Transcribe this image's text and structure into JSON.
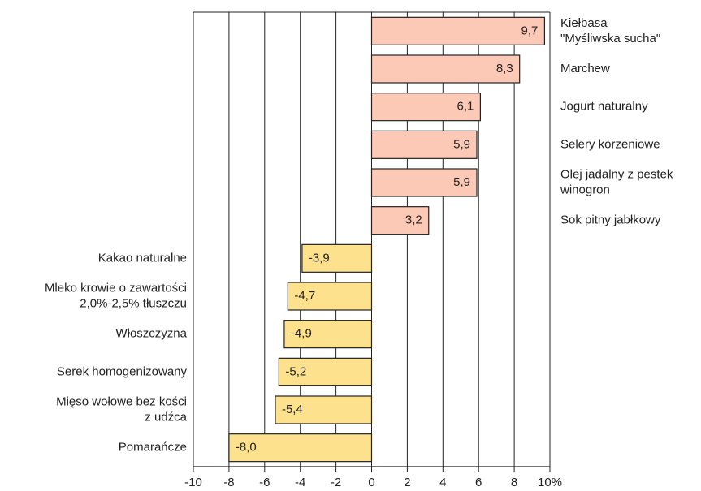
{
  "chart_data": {
    "type": "barh",
    "categories": [
      [
        "Kiełbasa",
        "\"Myśliwska sucha\""
      ],
      [
        "Marchew"
      ],
      [
        "Jogurt naturalny"
      ],
      [
        "Selery korzeniowe"
      ],
      [
        "Olej jadalny z pestek",
        "winogron"
      ],
      [
        "Sok pitny jabłkowy"
      ],
      [
        "Kakao naturalne"
      ],
      [
        "Mleko krowie o zawartości",
        "2,0%-2,5% tłuszczu"
      ],
      [
        "Włoszczyzna"
      ],
      [
        "Serek homogenizowany"
      ],
      [
        "Mięso wołowe bez kości",
        "z udźca"
      ],
      [
        "Pomarańcze"
      ]
    ],
    "values": [
      9.7,
      8.3,
      6.1,
      5.9,
      5.9,
      3.2,
      -3.9,
      -4.7,
      -4.9,
      -5.2,
      -5.4,
      -8.0
    ],
    "value_labels": [
      "9,7",
      "8,3",
      "6,1",
      "5,9",
      "5,9",
      "3,2",
      "-3,9",
      "-4,7",
      "-4,9",
      "-5,2",
      "-5,4",
      "-8,0"
    ],
    "colors": {
      "positive": "#fbc9b6",
      "negative": "#fde18d"
    },
    "xlim": [
      -10,
      10
    ],
    "xticks": [
      -10,
      -8,
      -6,
      -4,
      -2,
      0,
      2,
      4,
      6,
      8,
      {
        "value": 10,
        "label": "10%"
      }
    ],
    "grid": true
  }
}
